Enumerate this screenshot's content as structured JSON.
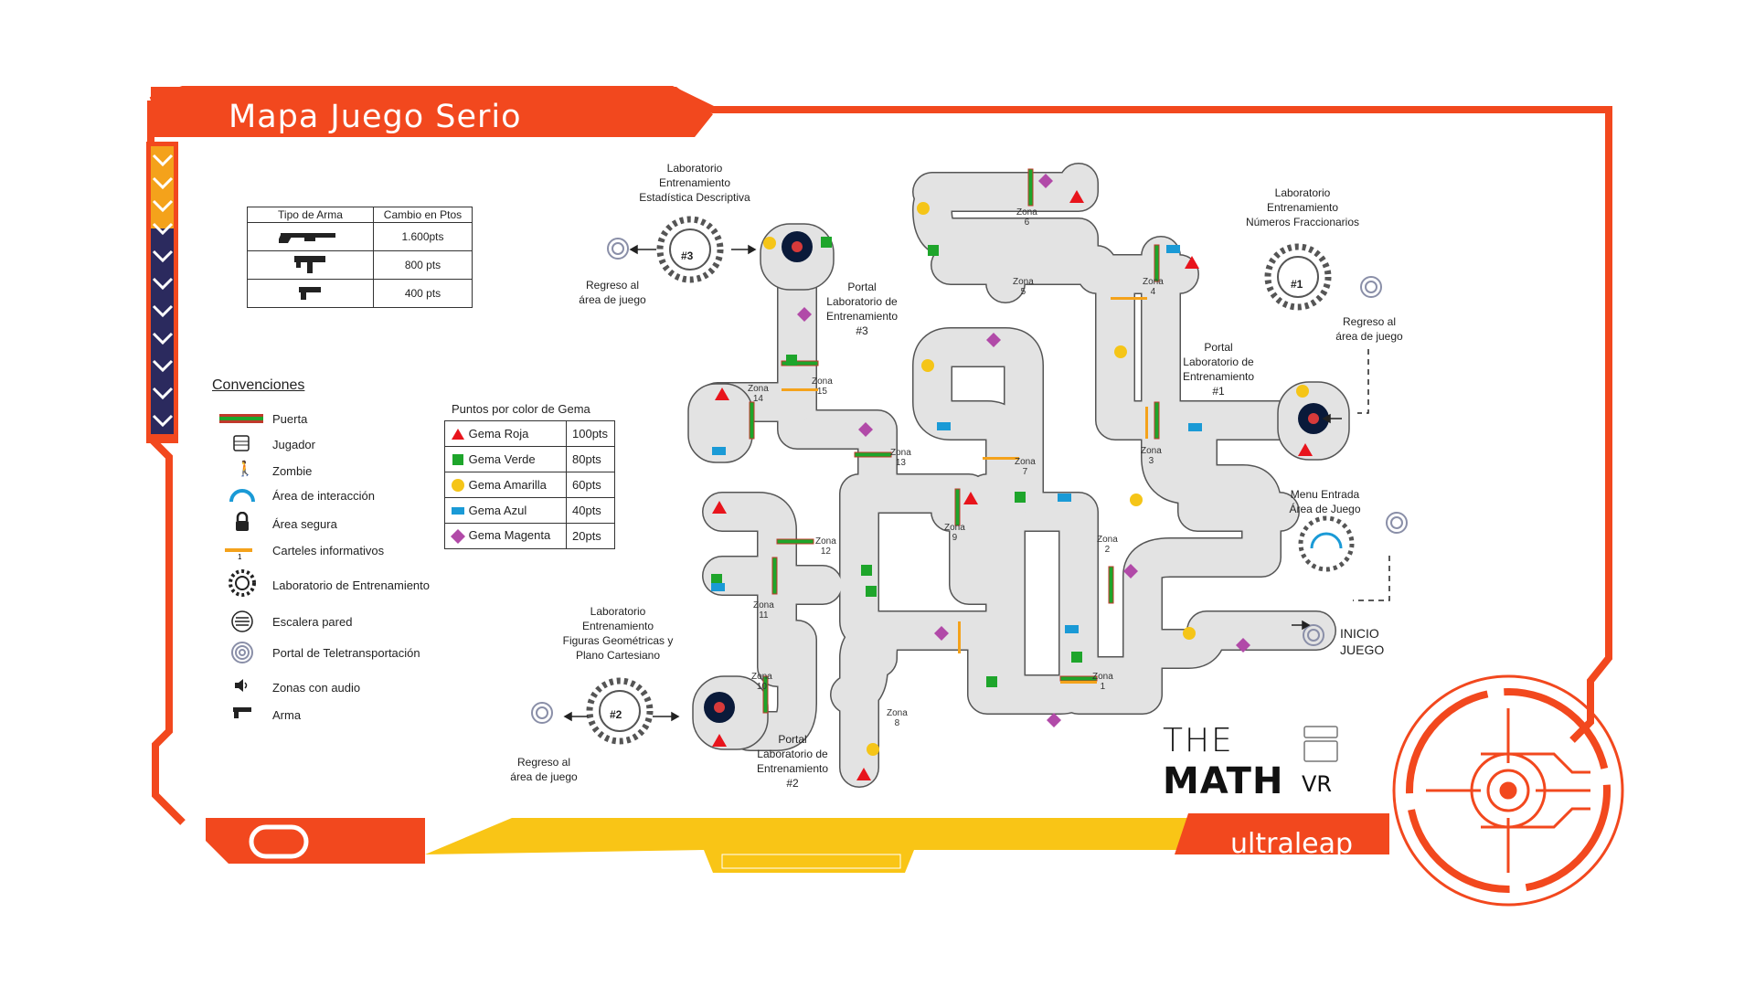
{
  "title": "Mapa Juego Serio",
  "weapons": {
    "headers": [
      "Tipo de Arma",
      "Cambio en Ptos"
    ],
    "rows": [
      {
        "icon": "shotgun-icon",
        "points": "1.600pts"
      },
      {
        "icon": "submachine-gun-icon",
        "points": "800 pts"
      },
      {
        "icon": "pistol-icon",
        "points": "400 pts"
      }
    ]
  },
  "conventions": {
    "title": "Convenciones",
    "items": [
      {
        "icon": "door-icon",
        "label": "Puerta"
      },
      {
        "icon": "player-icon",
        "label": "Jugador"
      },
      {
        "icon": "zombie-icon",
        "label": "Zombie"
      },
      {
        "icon": "interaction-area-icon",
        "label": "Área de interacción"
      },
      {
        "icon": "lock-icon",
        "label": "Área segura"
      },
      {
        "icon": "info-sign-icon",
        "label": "Carteles informativos"
      },
      {
        "icon": "training-lab-icon",
        "label": "Laboratorio de Entrenamiento"
      },
      {
        "icon": "wall-ladder-icon",
        "label": "Escalera pared"
      },
      {
        "icon": "teleport-portal-icon",
        "label": "Portal de Teletransportación"
      },
      {
        "icon": "audio-icon",
        "label": "Zonas con audio"
      },
      {
        "icon": "gun-icon",
        "label": "Arma"
      }
    ]
  },
  "gems": {
    "title": "Puntos  por color de Gema",
    "rows": [
      {
        "shape": "triangle",
        "color": "#e8141c",
        "name": "Gema Roja",
        "points": "100pts"
      },
      {
        "shape": "square",
        "color": "#1ea52b",
        "name": "Gema Verde",
        "points": "80pts"
      },
      {
        "shape": "circle",
        "color": "#f5c518",
        "name": "Gema Amarilla",
        "points": "60pts"
      },
      {
        "shape": "rect",
        "color": "#1a9ad6",
        "name": "Gema Azul",
        "points": "40pts"
      },
      {
        "shape": "diamond",
        "color": "#b14aa8",
        "name": "Gema Magenta",
        "points": "20pts"
      }
    ]
  },
  "labels": {
    "lab3": "Laboratorio\nEntrenamiento\nEstadística Descriptiva",
    "lab1": "Laboratorio\nEntrenamiento\nNúmeros Fraccionarios",
    "lab2": "Laboratorio\nEntrenamiento\nFiguras Geométricas y\nPlano Cartesiano",
    "portal3": "Portal\nLaboratorio de\nEntrenamiento\n#3",
    "portal1": "Portal\nLaboratorio de\nEntrenamiento\n#1",
    "portal2": "Portal\nLaboratorio de\nEntrenamiento\n#2",
    "return_a": "Regreso al\nárea de juego",
    "return_b": "Regreso al\nárea de juego",
    "return_c": "Regreso al\nárea de juego",
    "menu": "Menu Entrada\nÁrea de Juego",
    "start": "INICIO\nJUEGO",
    "lab3_num": "#3",
    "lab1_num": "#1",
    "lab2_num": "#2"
  },
  "zones": [
    {
      "label": "Zona\n1"
    },
    {
      "label": "Zona\n2"
    },
    {
      "label": "Zona\n3"
    },
    {
      "label": "Zona\n4"
    },
    {
      "label": "Zona\n5"
    },
    {
      "label": "Zona\n6"
    },
    {
      "label": "Zona\n7"
    },
    {
      "label": "Zona\n8"
    },
    {
      "label": "Zona\n9"
    },
    {
      "label": "Zona\n10"
    },
    {
      "label": "Zona\n11"
    },
    {
      "label": "Zona\n12"
    },
    {
      "label": "Zona\n13"
    },
    {
      "label": "Zona\n14"
    },
    {
      "label": "Zona\n15"
    }
  ],
  "logos": {
    "the": "THE",
    "math": "MATH",
    "vr": "VR",
    "ultraleap": "ultraleap"
  },
  "colors": {
    "frame": "#f2481e",
    "navy": "#2b2a5e",
    "amber": "#f4a21b",
    "yellow": "#f9c516",
    "path": "#e3e3e3"
  }
}
